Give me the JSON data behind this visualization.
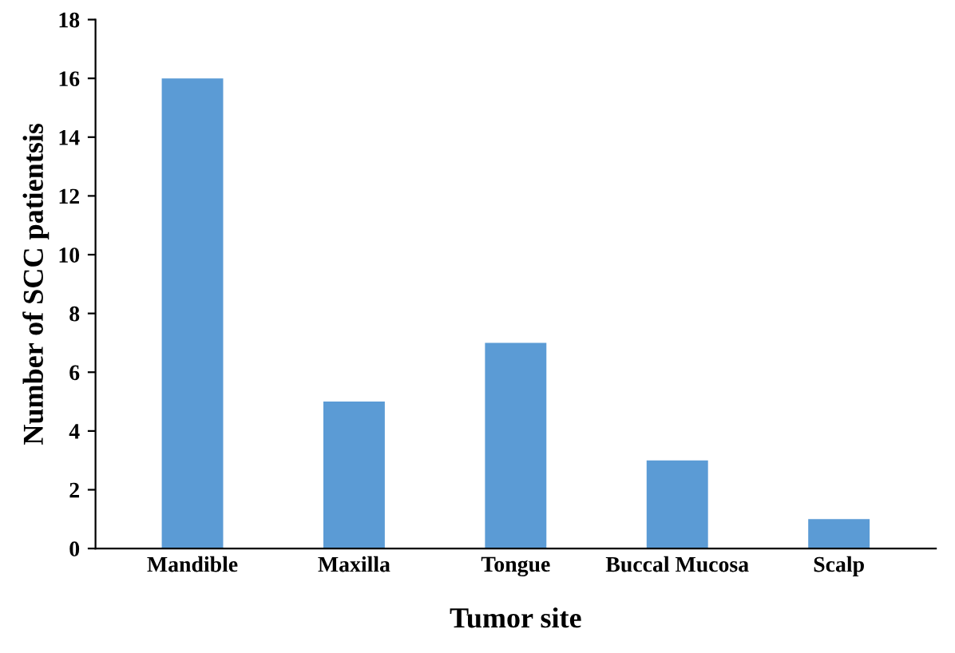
{
  "chart_data": {
    "type": "bar",
    "xlabel": "Tumor site",
    "ylabel": "Number of SCC patientsis",
    "categories": [
      "Mandible",
      "Maxilla",
      "Tongue",
      "Buccal Mucosa",
      "Scalp"
    ],
    "values": [
      16,
      5,
      7,
      3,
      1
    ],
    "color": "#5b9bd5",
    "ylim": [
      0,
      18
    ],
    "yticks": [
      0,
      2,
      4,
      6,
      8,
      10,
      12,
      14,
      16,
      18
    ],
    "grid": false,
    "legend": false
  }
}
